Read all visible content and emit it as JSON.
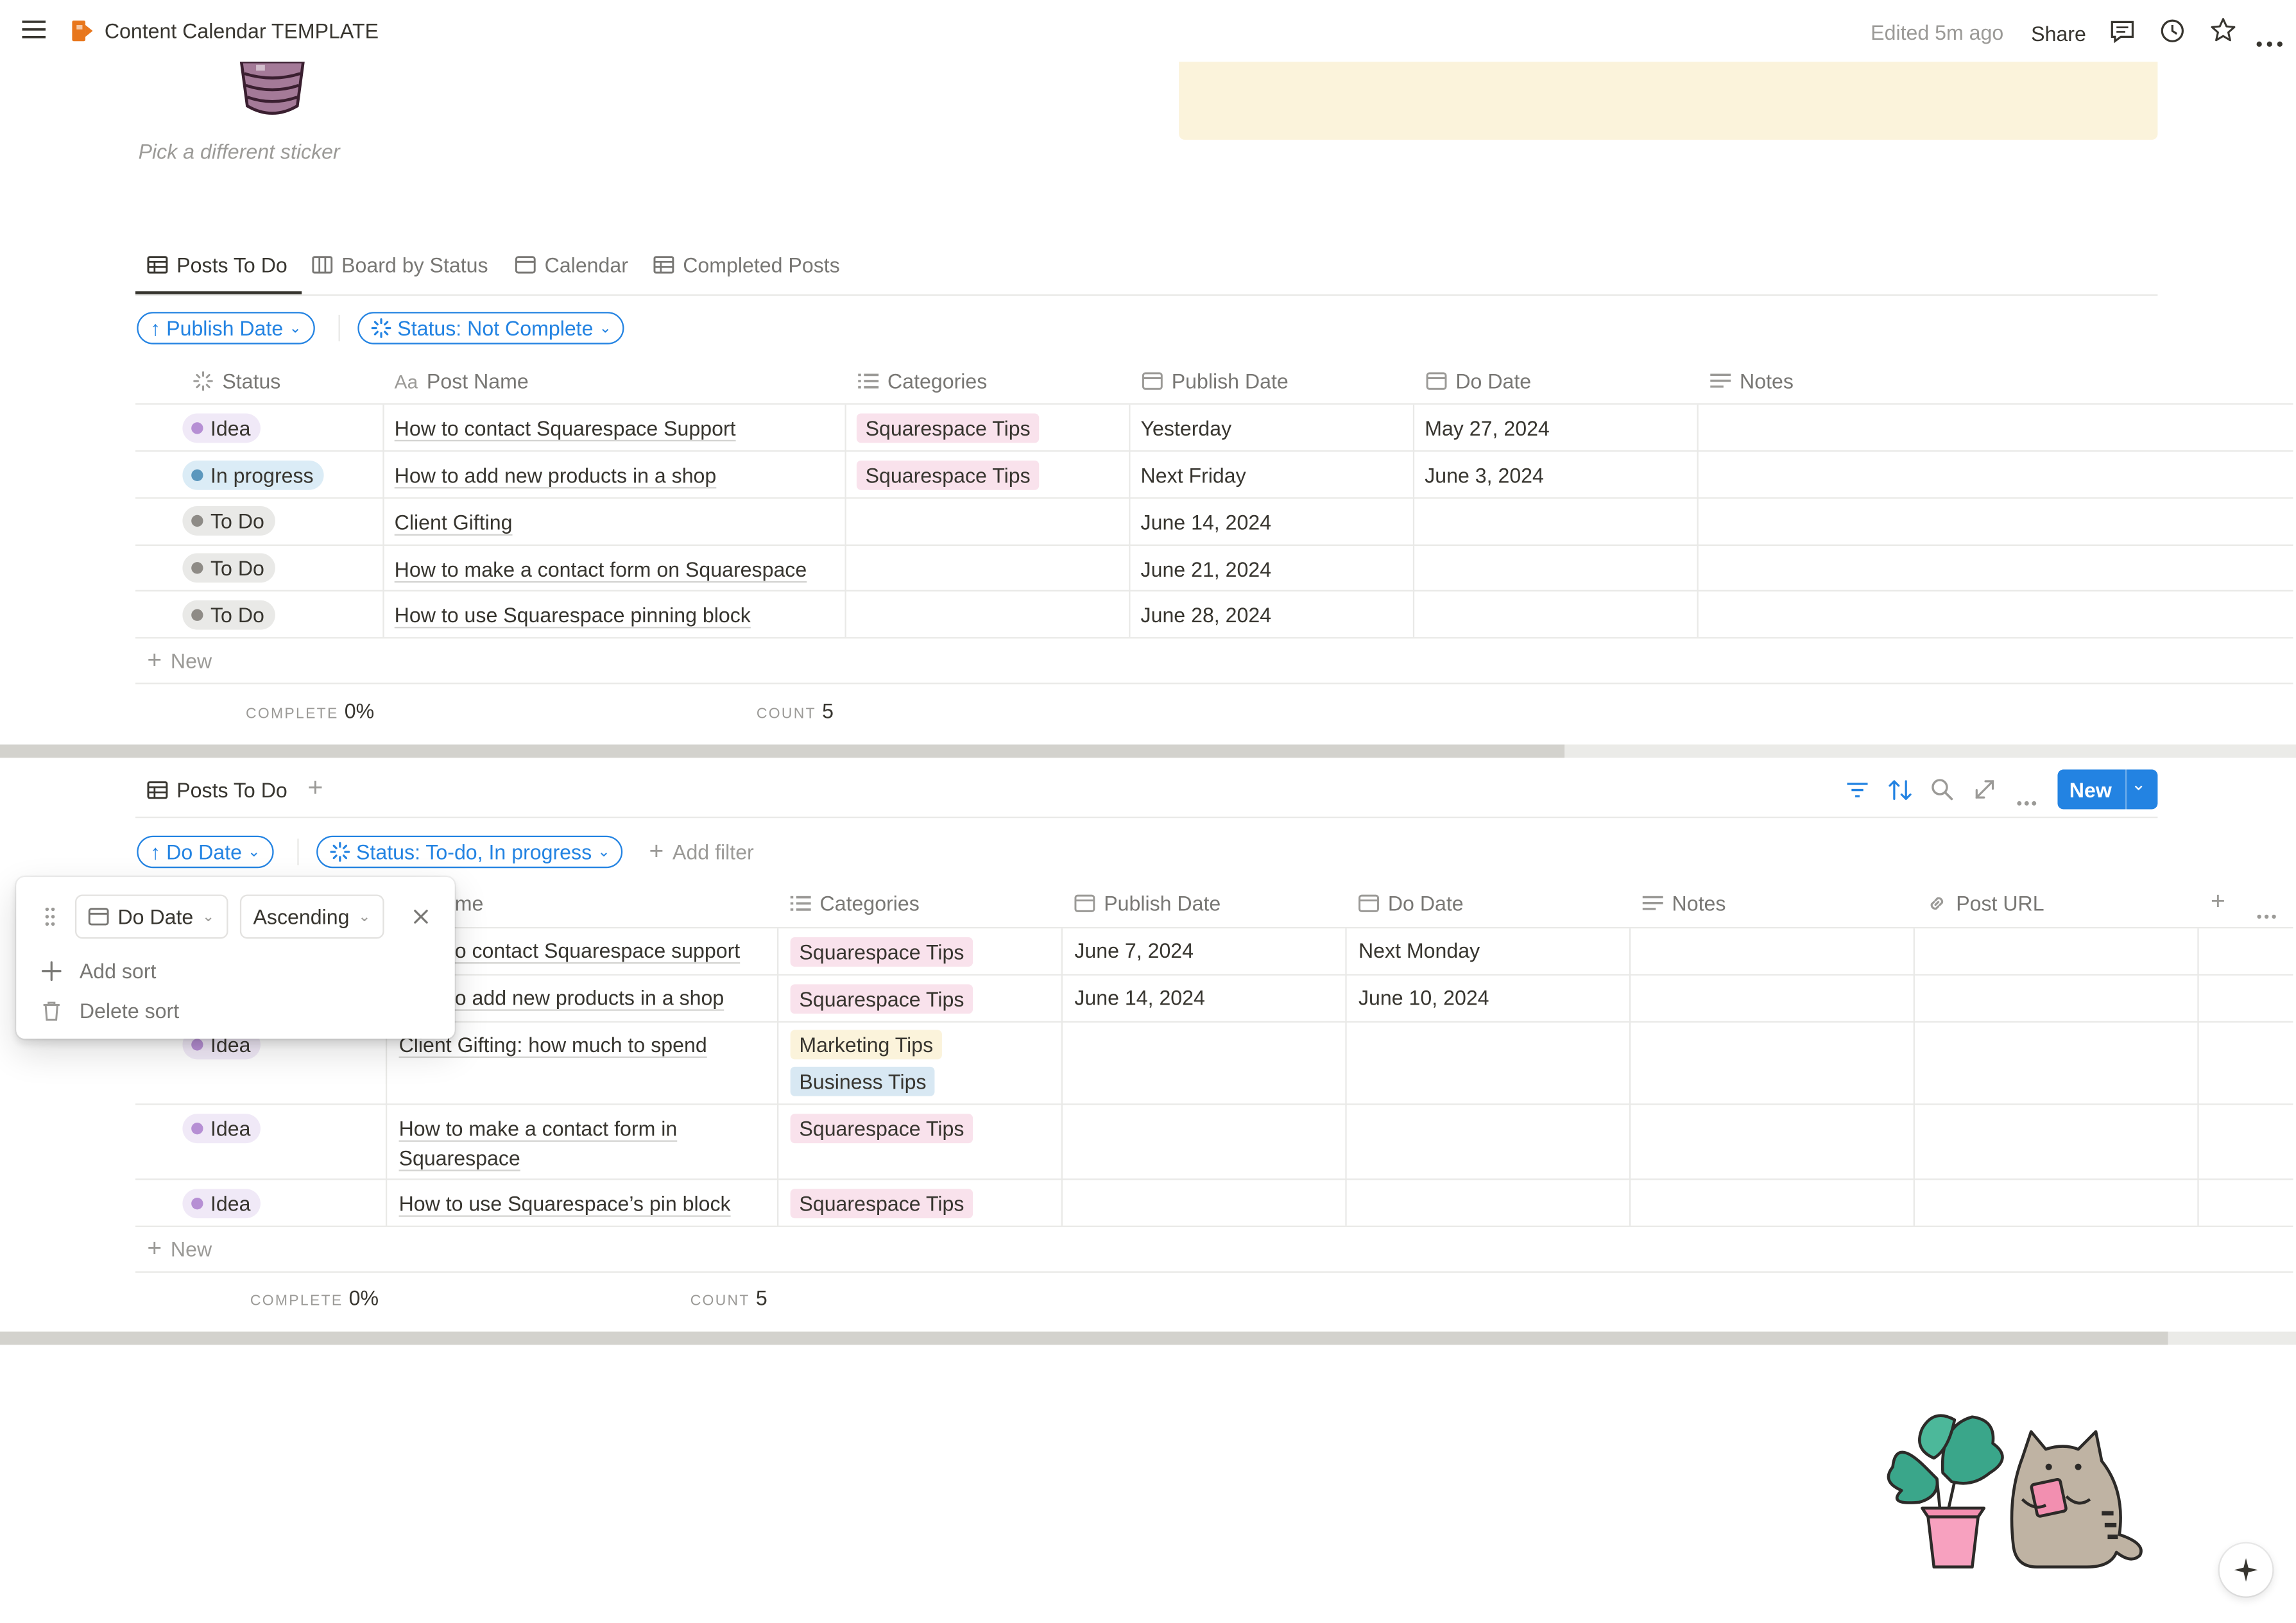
{
  "topbar": {
    "page_title": "Content Calendar TEMPLATE",
    "edited": "Edited 5m ago",
    "share": "Share"
  },
  "header": {
    "sticker_caption": "Pick a different sticker",
    "callout_color": "#fbf3db"
  },
  "view1": {
    "tabs": [
      {
        "label": "Posts To Do"
      },
      {
        "label": "Board by Status"
      },
      {
        "label": "Calendar"
      },
      {
        "label": "Completed Posts"
      }
    ],
    "sort_pill": "Publish Date",
    "filter_pill": "Status: Not Complete",
    "columns": [
      "Status",
      "Post Name",
      "Categories",
      "Publish Date",
      "Do Date",
      "Notes"
    ],
    "rows": [
      {
        "status": "Idea",
        "name": "How to contact Squarespace Support",
        "category": "Squarespace Tips",
        "publish": "Yesterday",
        "do": "May 27, 2024"
      },
      {
        "status": "In progress",
        "name": "How to add new products in a shop",
        "category": "Squarespace Tips",
        "publish": "Next Friday",
        "do": "June 3, 2024"
      },
      {
        "status": "To Do",
        "name": "Client Gifting",
        "category": "",
        "publish": "June 14, 2024",
        "do": ""
      },
      {
        "status": "To Do",
        "name": "How to make a contact form on Squarespace",
        "category": "",
        "publish": "June 21, 2024",
        "do": ""
      },
      {
        "status": "To Do",
        "name": "How to use Squarespace pinning block",
        "category": "",
        "publish": "June 28, 2024",
        "do": ""
      }
    ],
    "new_label": "New",
    "footer": {
      "complete_label": "COMPLETE",
      "complete_value": "0%",
      "count_label": "COUNT",
      "count_value": "5"
    }
  },
  "view2": {
    "title": "Posts To Do",
    "new_button": "New",
    "sort_pill": "Do Date",
    "filter_pill": "Status: To-do, In progress",
    "add_filter": "Add filter",
    "columns": [
      "me",
      "Categories",
      "Publish Date",
      "Do Date",
      "Notes",
      "Post URL"
    ],
    "rows": [
      {
        "status": "",
        "name": "o contact Squarespace support",
        "categories": [
          "Squarespace Tips"
        ],
        "publish": "June 7, 2024",
        "do": "Next Monday"
      },
      {
        "status": "",
        "name": "o add new products in a shop",
        "categories": [
          "Squarespace Tips"
        ],
        "publish": "June 14, 2024",
        "do": "June 10, 2024"
      },
      {
        "status": "Idea",
        "name": "Client Gifting: how much to spend",
        "categories": [
          "Marketing Tips",
          "Business Tips"
        ],
        "publish": "",
        "do": ""
      },
      {
        "status": "Idea",
        "name": "How to make a contact form in",
        "name2": "Squarespace",
        "categories": [
          "Squarespace Tips"
        ],
        "publish": "",
        "do": ""
      },
      {
        "status": "Idea",
        "name": "How to use Squarespace’s pin block",
        "categories": [
          "Squarespace Tips"
        ],
        "publish": "",
        "do": ""
      }
    ],
    "new_label": "New",
    "footer": {
      "complete_label": "COMPLETE",
      "complete_value": "0%",
      "count_label": "COUNT",
      "count_value": "5"
    }
  },
  "sort_popup": {
    "property": "Do Date",
    "direction": "Ascending",
    "add_sort": "Add sort",
    "delete_sort": "Delete sort"
  },
  "colors": {
    "accent": "#2383e2",
    "idea_bg": "#f0e9f7",
    "idea_dot": "#b68fd4",
    "progress_bg": "#dbecf6",
    "progress_dot": "#5b97bd",
    "todo_bg": "#e9e9e7",
    "todo_dot": "#8e8b86",
    "tag_pink": "#f9e2ec",
    "tag_yellow": "#fbf3db",
    "tag_blue": "#d8e8f3"
  }
}
